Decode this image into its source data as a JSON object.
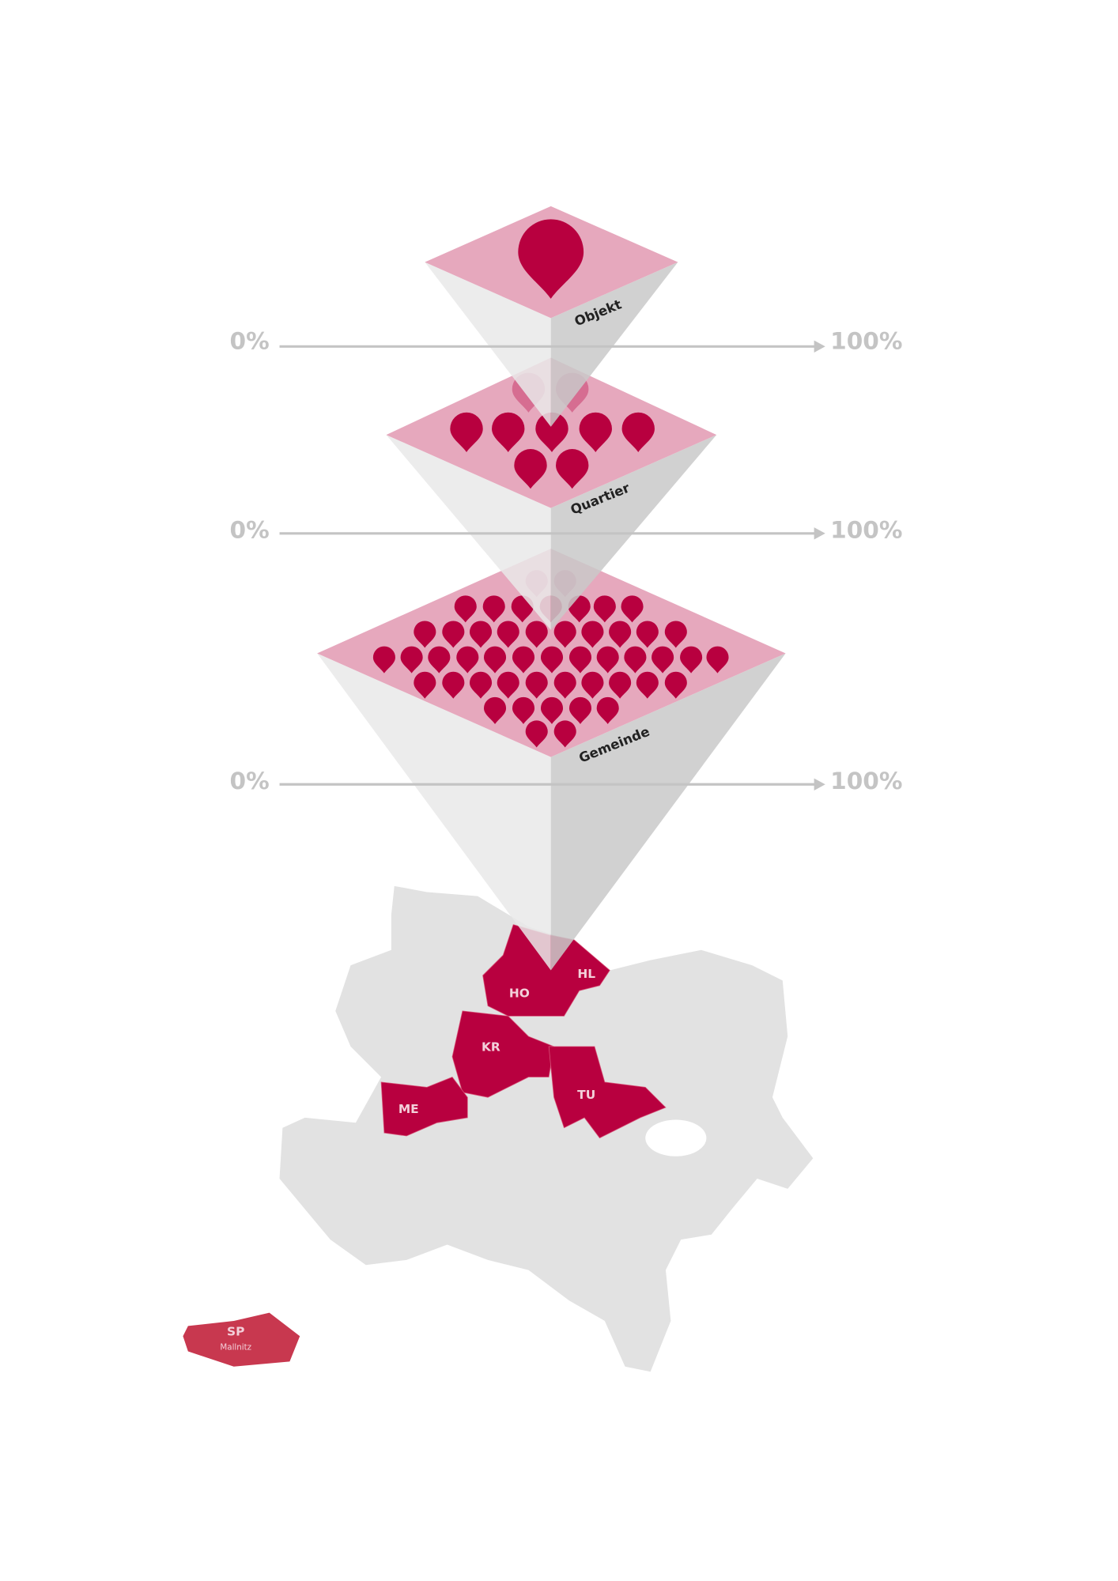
{
  "layers": [
    {
      "label": "Objekt"
    },
    {
      "label": "Quartier"
    },
    {
      "label": "Gemeinde"
    }
  ],
  "scales": [
    {
      "start": "0%",
      "end": "100%"
    },
    {
      "start": "0%",
      "end": "100%"
    },
    {
      "start": "0%",
      "end": "100%"
    }
  ],
  "map": {
    "regions": [
      {
        "label": "HO"
      },
      {
        "label": "HL"
      },
      {
        "label": "KR"
      },
      {
        "label": "TU"
      },
      {
        "label": "ME"
      }
    ],
    "exclave": {
      "label": "SP",
      "sublabel": "Mallnitz"
    }
  }
}
